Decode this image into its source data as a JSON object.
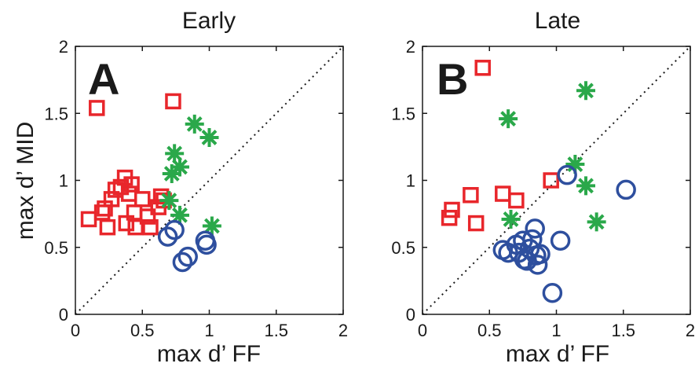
{
  "colors": {
    "square": "#e8262b",
    "star": "#2aa84a",
    "circle": "#2e4f9e",
    "axis": "#1a1a1a"
  },
  "chart_data": [
    {
      "type": "scatter",
      "title": "Early",
      "panel_letter": "A",
      "xlabel": "max d’ FF",
      "ylabel": "max d’ MID",
      "xlim": [
        0,
        2
      ],
      "ylim": [
        0,
        2
      ],
      "xticks": [
        "0",
        "0.5",
        "1",
        "1.5",
        "2"
      ],
      "yticks": [
        "0",
        "0.5",
        "1",
        "1.5",
        "2"
      ],
      "diagonal": "dotted",
      "series": [
        {
          "marker": "square",
          "points": [
            [
              0.16,
              1.54
            ],
            [
              0.73,
              1.59
            ],
            [
              0.1,
              0.71
            ],
            [
              0.2,
              0.76
            ],
            [
              0.22,
              0.79
            ],
            [
              0.24,
              0.65
            ],
            [
              0.27,
              0.86
            ],
            [
              0.3,
              0.93
            ],
            [
              0.34,
              0.95
            ],
            [
              0.37,
              1.02
            ],
            [
              0.38,
              0.68
            ],
            [
              0.4,
              0.9
            ],
            [
              0.42,
              0.97
            ],
            [
              0.44,
              0.76
            ],
            [
              0.45,
              0.65
            ],
            [
              0.5,
              0.86
            ],
            [
              0.54,
              0.73
            ],
            [
              0.56,
              0.65
            ],
            [
              0.62,
              0.8
            ],
            [
              0.64,
              0.88
            ],
            [
              0.66,
              0.85
            ]
          ]
        },
        {
          "marker": "star",
          "points": [
            [
              0.89,
              1.42
            ],
            [
              1.0,
              1.32
            ],
            [
              0.74,
              1.2
            ],
            [
              0.78,
              1.1
            ],
            [
              0.72,
              1.05
            ],
            [
              0.7,
              0.85
            ],
            [
              0.78,
              0.74
            ],
            [
              1.02,
              0.66
            ]
          ]
        },
        {
          "marker": "circle",
          "points": [
            [
              0.69,
              0.58
            ],
            [
              0.74,
              0.63
            ],
            [
              0.8,
              0.39
            ],
            [
              0.84,
              0.43
            ],
            [
              0.97,
              0.55
            ],
            [
              0.98,
              0.52
            ]
          ]
        }
      ]
    },
    {
      "type": "scatter",
      "title": "Late",
      "panel_letter": "B",
      "xlabel": "max d’ FF",
      "ylabel": "",
      "xlim": [
        0,
        2
      ],
      "ylim": [
        0,
        2
      ],
      "xticks": [
        "0",
        "0.5",
        "1",
        "1.5",
        "2"
      ],
      "yticks": [
        "0",
        "0.5",
        "1",
        "1.5",
        "2"
      ],
      "diagonal": "dotted",
      "series": [
        {
          "marker": "square",
          "points": [
            [
              0.45,
              1.84
            ],
            [
              0.2,
              0.72
            ],
            [
              0.22,
              0.78
            ],
            [
              0.36,
              0.89
            ],
            [
              0.4,
              0.68
            ],
            [
              0.6,
              0.9
            ],
            [
              0.7,
              0.85
            ],
            [
              0.96,
              1.0
            ]
          ]
        },
        {
          "marker": "star",
          "points": [
            [
              1.22,
              1.67
            ],
            [
              0.64,
              1.46
            ],
            [
              1.14,
              1.12
            ],
            [
              1.22,
              0.96
            ],
            [
              0.66,
              0.71
            ],
            [
              1.3,
              0.69
            ]
          ]
        },
        {
          "marker": "circle",
          "points": [
            [
              1.08,
              1.04
            ],
            [
              1.52,
              0.93
            ],
            [
              0.6,
              0.48
            ],
            [
              0.64,
              0.46
            ],
            [
              0.7,
              0.52
            ],
            [
              0.72,
              0.46
            ],
            [
              0.75,
              0.55
            ],
            [
              0.76,
              0.41
            ],
            [
              0.78,
              0.4
            ],
            [
              0.8,
              0.49
            ],
            [
              0.82,
              0.56
            ],
            [
              0.84,
              0.64
            ],
            [
              0.85,
              0.44
            ],
            [
              0.86,
              0.37
            ],
            [
              0.88,
              0.45
            ],
            [
              1.03,
              0.55
            ],
            [
              0.97,
              0.16
            ]
          ]
        }
      ]
    }
  ]
}
